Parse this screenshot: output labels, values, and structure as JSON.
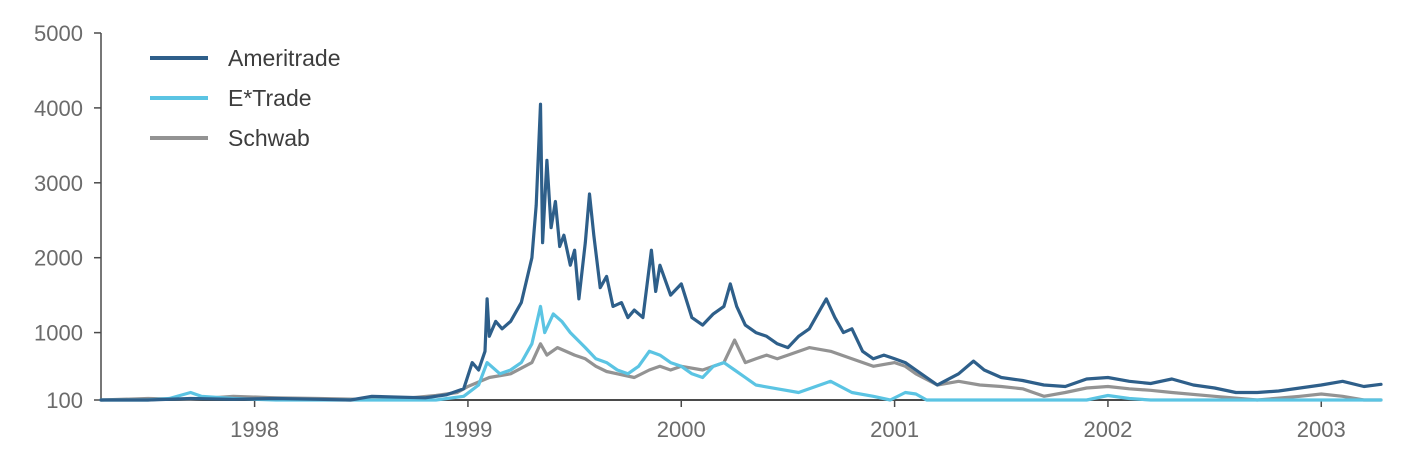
{
  "chart_data": {
    "type": "line",
    "title": "",
    "xlabel": "",
    "ylabel": "",
    "ylim": [
      100,
      5000
    ],
    "y_ticks": [
      100,
      1000,
      2000,
      3000,
      4000,
      5000
    ],
    "xlim": [
      1997.28,
      2003.28
    ],
    "x_ticks": [
      1998,
      1999,
      2000,
      2001,
      2002,
      2003
    ],
    "grid": false,
    "legend": "top-left",
    "series": [
      {
        "name": "Ameritrade",
        "color": "#2e5f8a",
        "points": [
          [
            1997.28,
            100
          ],
          [
            1997.5,
            100
          ],
          [
            1997.7,
            120
          ],
          [
            1997.9,
            110
          ],
          [
            1998.1,
            120
          ],
          [
            1998.3,
            110
          ],
          [
            1998.45,
            100
          ],
          [
            1998.55,
            150
          ],
          [
            1998.65,
            140
          ],
          [
            1998.8,
            130
          ],
          [
            1998.9,
            170
          ],
          [
            1998.98,
            250
          ],
          [
            1999.02,
            600
          ],
          [
            1999.05,
            500
          ],
          [
            1999.08,
            750
          ],
          [
            1999.09,
            1450
          ],
          [
            1999.1,
            950
          ],
          [
            1999.13,
            1150
          ],
          [
            1999.16,
            1050
          ],
          [
            1999.2,
            1150
          ],
          [
            1999.25,
            1400
          ],
          [
            1999.3,
            2000
          ],
          [
            1999.32,
            2700
          ],
          [
            1999.34,
            4050
          ],
          [
            1999.35,
            2200
          ],
          [
            1999.37,
            3300
          ],
          [
            1999.39,
            2400
          ],
          [
            1999.41,
            2750
          ],
          [
            1999.43,
            2150
          ],
          [
            1999.45,
            2300
          ],
          [
            1999.48,
            1900
          ],
          [
            1999.5,
            2100
          ],
          [
            1999.52,
            1450
          ],
          [
            1999.55,
            2200
          ],
          [
            1999.57,
            2850
          ],
          [
            1999.59,
            2300
          ],
          [
            1999.62,
            1600
          ],
          [
            1999.65,
            1750
          ],
          [
            1999.68,
            1350
          ],
          [
            1999.72,
            1400
          ],
          [
            1999.75,
            1200
          ],
          [
            1999.78,
            1300
          ],
          [
            1999.82,
            1200
          ],
          [
            1999.86,
            2100
          ],
          [
            1999.88,
            1550
          ],
          [
            1999.9,
            1900
          ],
          [
            1999.95,
            1500
          ],
          [
            2000.0,
            1650
          ],
          [
            2000.05,
            1200
          ],
          [
            2000.1,
            1100
          ],
          [
            2000.15,
            1250
          ],
          [
            2000.2,
            1350
          ],
          [
            2000.23,
            1650
          ],
          [
            2000.26,
            1350
          ],
          [
            2000.3,
            1100
          ],
          [
            2000.35,
            1000
          ],
          [
            2000.4,
            950
          ],
          [
            2000.45,
            850
          ],
          [
            2000.5,
            800
          ],
          [
            2000.55,
            950
          ],
          [
            2000.6,
            1050
          ],
          [
            2000.65,
            1300
          ],
          [
            2000.68,
            1450
          ],
          [
            2000.72,
            1200
          ],
          [
            2000.76,
            1000
          ],
          [
            2000.8,
            1050
          ],
          [
            2000.85,
            750
          ],
          [
            2000.9,
            650
          ],
          [
            2000.95,
            700
          ],
          [
            2001.0,
            650
          ],
          [
            2001.05,
            600
          ],
          [
            2001.1,
            500
          ],
          [
            2001.15,
            400
          ],
          [
            2001.2,
            300
          ],
          [
            2001.3,
            450
          ],
          [
            2001.37,
            620
          ],
          [
            2001.42,
            500
          ],
          [
            2001.5,
            400
          ],
          [
            2001.6,
            360
          ],
          [
            2001.7,
            300
          ],
          [
            2001.8,
            280
          ],
          [
            2001.9,
            380
          ],
          [
            2002.0,
            400
          ],
          [
            2002.1,
            350
          ],
          [
            2002.2,
            320
          ],
          [
            2002.3,
            380
          ],
          [
            2002.4,
            300
          ],
          [
            2002.5,
            260
          ],
          [
            2002.6,
            200
          ],
          [
            2002.7,
            200
          ],
          [
            2002.8,
            220
          ],
          [
            2002.9,
            260
          ],
          [
            2003.0,
            300
          ],
          [
            2003.1,
            350
          ],
          [
            2003.2,
            280
          ],
          [
            2003.28,
            310
          ]
        ]
      },
      {
        "name": "E*Trade",
        "color": "#5bc4e3",
        "points": [
          [
            1997.28,
            100
          ],
          [
            1997.5,
            100
          ],
          [
            1997.6,
            120
          ],
          [
            1997.7,
            200
          ],
          [
            1997.75,
            150
          ],
          [
            1997.9,
            120
          ],
          [
            1998.1,
            100
          ],
          [
            1998.3,
            100
          ],
          [
            1998.5,
            90
          ],
          [
            1998.7,
            70
          ],
          [
            1998.85,
            100
          ],
          [
            1998.98,
            150
          ],
          [
            1999.05,
            300
          ],
          [
            1999.09,
            600
          ],
          [
            1999.15,
            450
          ],
          [
            1999.2,
            500
          ],
          [
            1999.25,
            600
          ],
          [
            1999.3,
            850
          ],
          [
            1999.34,
            1350
          ],
          [
            1999.36,
            1000
          ],
          [
            1999.4,
            1250
          ],
          [
            1999.44,
            1150
          ],
          [
            1999.48,
            1000
          ],
          [
            1999.55,
            800
          ],
          [
            1999.6,
            650
          ],
          [
            1999.65,
            600
          ],
          [
            1999.7,
            500
          ],
          [
            1999.75,
            450
          ],
          [
            1999.8,
            550
          ],
          [
            1999.85,
            750
          ],
          [
            1999.9,
            700
          ],
          [
            1999.95,
            600
          ],
          [
            2000.0,
            550
          ],
          [
            2000.05,
            450
          ],
          [
            2000.1,
            400
          ],
          [
            2000.15,
            550
          ],
          [
            2000.2,
            600
          ],
          [
            2000.25,
            500
          ],
          [
            2000.3,
            400
          ],
          [
            2000.35,
            300
          ],
          [
            2000.45,
            250
          ],
          [
            2000.55,
            200
          ],
          [
            2000.65,
            300
          ],
          [
            2000.7,
            350
          ],
          [
            2000.8,
            200
          ],
          [
            2000.9,
            150
          ],
          [
            2000.98,
            100
          ],
          [
            2001.05,
            200
          ],
          [
            2001.1,
            180
          ],
          [
            2001.15,
            100
          ],
          [
            2001.2,
            50
          ],
          [
            2001.3,
            100
          ],
          [
            2001.4,
            70
          ],
          [
            2001.5,
            50
          ],
          [
            2001.6,
            50
          ],
          [
            2001.7,
            50
          ],
          [
            2001.8,
            50
          ],
          [
            2001.9,
            80
          ],
          [
            2002.0,
            160
          ],
          [
            2002.1,
            120
          ],
          [
            2002.2,
            80
          ],
          [
            2002.3,
            50
          ],
          [
            2002.5,
            20
          ],
          [
            2002.7,
            0
          ],
          [
            2002.9,
            10
          ],
          [
            2003.0,
            5
          ],
          [
            2003.2,
            0
          ],
          [
            2003.28,
            0
          ]
        ]
      },
      {
        "name": "Schwab",
        "color": "#939393",
        "points": [
          [
            1997.28,
            100
          ],
          [
            1997.5,
            120
          ],
          [
            1997.7,
            110
          ],
          [
            1997.9,
            150
          ],
          [
            1998.1,
            130
          ],
          [
            1998.3,
            120
          ],
          [
            1998.5,
            110
          ],
          [
            1998.7,
            120
          ],
          [
            1998.85,
            160
          ],
          [
            1998.95,
            200
          ],
          [
            1999.0,
            280
          ],
          [
            1999.1,
            400
          ],
          [
            1999.2,
            450
          ],
          [
            1999.3,
            600
          ],
          [
            1999.34,
            850
          ],
          [
            1999.37,
            700
          ],
          [
            1999.42,
            800
          ],
          [
            1999.5,
            700
          ],
          [
            1999.55,
            650
          ],
          [
            1999.6,
            550
          ],
          [
            1999.65,
            480
          ],
          [
            1999.7,
            450
          ],
          [
            1999.78,
            400
          ],
          [
            1999.85,
            500
          ],
          [
            1999.9,
            550
          ],
          [
            1999.95,
            500
          ],
          [
            2000.0,
            550
          ],
          [
            2000.1,
            500
          ],
          [
            2000.2,
            600
          ],
          [
            2000.25,
            900
          ],
          [
            2000.3,
            600
          ],
          [
            2000.35,
            650
          ],
          [
            2000.4,
            700
          ],
          [
            2000.45,
            650
          ],
          [
            2000.5,
            700
          ],
          [
            2000.6,
            800
          ],
          [
            2000.7,
            750
          ],
          [
            2000.8,
            650
          ],
          [
            2000.9,
            550
          ],
          [
            2001.0,
            600
          ],
          [
            2001.05,
            550
          ],
          [
            2001.1,
            450
          ],
          [
            2001.2,
            300
          ],
          [
            2001.3,
            350
          ],
          [
            2001.4,
            300
          ],
          [
            2001.5,
            280
          ],
          [
            2001.6,
            250
          ],
          [
            2001.7,
            150
          ],
          [
            2001.8,
            200
          ],
          [
            2001.9,
            260
          ],
          [
            2002.0,
            280
          ],
          [
            2002.1,
            250
          ],
          [
            2002.2,
            230
          ],
          [
            2002.3,
            200
          ],
          [
            2002.5,
            150
          ],
          [
            2002.7,
            100
          ],
          [
            2002.9,
            150
          ],
          [
            2003.0,
            180
          ],
          [
            2003.1,
            150
          ],
          [
            2003.2,
            100
          ],
          [
            2003.28,
            100
          ]
        ]
      }
    ]
  }
}
